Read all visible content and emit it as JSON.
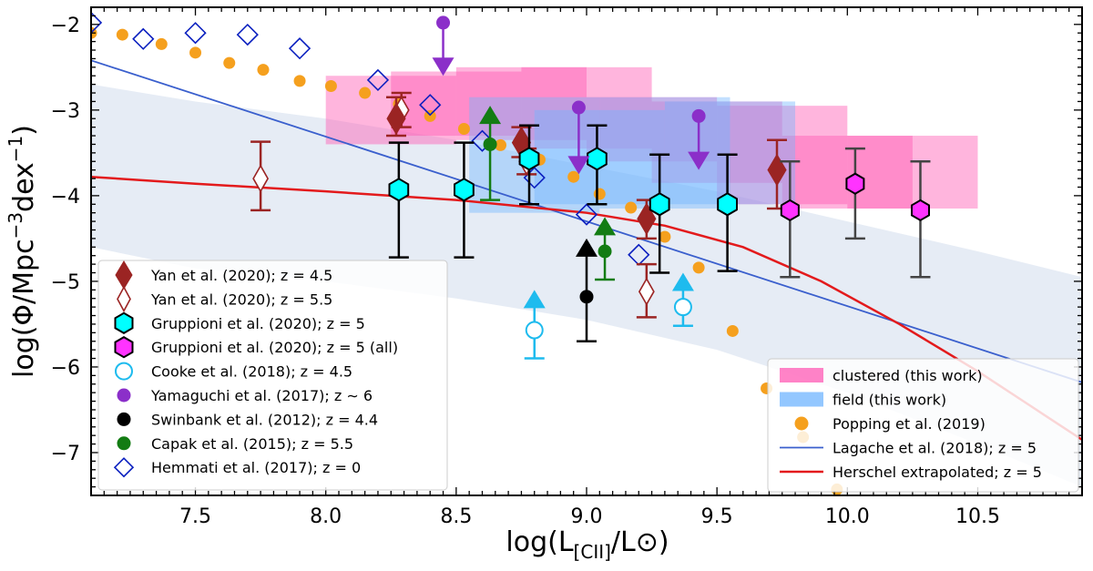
{
  "chart_data": {
    "type": "scatter",
    "xlabel": "log(L[CII]/L⊙)",
    "xlabel_main": "log(L",
    "xlabel_sub": "[CII]",
    "xlabel_tail": "/L⊙)",
    "ylabel": "log(Φ/Mpc−3dex−1)",
    "ylabel_main": "log(Φ/Mpc",
    "ylabel_sup1": "−3",
    "ylabel_mid": "dex",
    "ylabel_sup2": "−1",
    "ylabel_end": ")",
    "xlim": [
      7.1,
      10.9
    ],
    "ylim": [
      -7.5,
      -1.8
    ],
    "xticks": [
      7.5,
      8.0,
      8.5,
      9.0,
      9.5,
      10.0,
      10.5
    ],
    "xtick_labels": [
      "7.5",
      "8.0",
      "8.5",
      "9.0",
      "9.5",
      "10.0",
      "10.5"
    ],
    "yticks": [
      -2,
      -3,
      -4,
      -5,
      -6,
      -7
    ],
    "ytick_labels": [
      "−2",
      "−3",
      "−4",
      "−5",
      "−6",
      "−7"
    ],
    "colors": {
      "yan": "#9b2423",
      "gruppioni": "#00ffff",
      "gruppioni_all": "#ff33ff",
      "cooke": "#1ebbee",
      "yamaguchi": "#8b2fc9",
      "swinbank": "#000000",
      "capak": "#137c13",
      "hemmati": "#0a1fbf",
      "clustered": "#ff5ab4",
      "field": "#6fb4ff",
      "popping": "#f5a01e",
      "lagache": "#3a5fcd",
      "herschel": "#e31a1c",
      "band": "#dde6f2"
    },
    "clustered_boxes": [
      {
        "x": [
          8.0,
          8.5
        ],
        "y": [
          -3.4,
          -2.6
        ]
      },
      {
        "x": [
          8.25,
          8.75
        ],
        "y": [
          -3.3,
          -2.55
        ]
      },
      {
        "x": [
          8.5,
          9.0
        ],
        "y": [
          -3.35,
          -2.5
        ]
      },
      {
        "x": [
          8.75,
          9.25
        ],
        "y": [
          -3.45,
          -2.5
        ]
      },
      {
        "x": [
          9.0,
          9.5
        ],
        "y": [
          -3.6,
          -2.85
        ]
      },
      {
        "x": [
          9.25,
          9.75
        ],
        "y": [
          -3.85,
          -2.9
        ]
      },
      {
        "x": [
          9.5,
          10.0
        ],
        "y": [
          -4.1,
          -2.95
        ]
      },
      {
        "x": [
          9.75,
          10.25
        ],
        "y": [
          -4.15,
          -3.3
        ]
      },
      {
        "x": [
          10.0,
          10.5
        ],
        "y": [
          -4.15,
          -3.3
        ]
      }
    ],
    "field_boxes": [
      {
        "x": [
          8.55,
          9.05
        ],
        "y": [
          -4.2,
          -2.85
        ]
      },
      {
        "x": [
          8.8,
          9.3
        ],
        "y": [
          -4.1,
          -3.0
        ]
      },
      {
        "x": [
          9.05,
          9.55
        ],
        "y": [
          -4.15,
          -2.85
        ]
      },
      {
        "x": [
          9.3,
          9.8
        ],
        "y": [
          -4.1,
          -2.9
        ]
      }
    ],
    "band": {
      "x": [
        7.1,
        7.5,
        8.0,
        8.5,
        9.0,
        9.5,
        10.0,
        10.5,
        10.9
      ],
      "upper": [
        -2.7,
        -2.9,
        -3.1,
        -3.35,
        -3.65,
        -3.95,
        -4.3,
        -4.65,
        -4.95
      ],
      "lower": [
        -4.6,
        -4.85,
        -5.0,
        -5.2,
        -5.45,
        -5.8,
        -6.3,
        -6.9,
        -7.4
      ]
    },
    "lagache_line": {
      "x": [
        7.1,
        10.9
      ],
      "y": [
        -2.42,
        -6.18
      ]
    },
    "herschel_line": {
      "x": [
        7.1,
        7.5,
        8.0,
        8.5,
        9.0,
        9.3,
        9.6,
        9.9,
        10.2,
        10.5,
        10.7,
        10.9
      ],
      "y": [
        -3.78,
        -3.86,
        -3.95,
        -4.05,
        -4.2,
        -4.35,
        -4.6,
        -5.0,
        -5.5,
        -6.05,
        -6.45,
        -6.85
      ]
    },
    "popping": {
      "x": [
        7.1,
        7.22,
        7.37,
        7.5,
        7.63,
        7.76,
        7.9,
        8.02,
        8.15,
        8.28,
        8.4,
        8.53,
        8.67,
        8.82,
        8.95,
        9.05,
        9.17,
        9.3,
        9.43,
        9.56,
        9.69,
        9.83,
        9.96
      ],
      "y": [
        -2.1,
        -2.12,
        -2.23,
        -2.33,
        -2.45,
        -2.53,
        -2.66,
        -2.72,
        -2.8,
        -2.93,
        -3.07,
        -3.22,
        -3.41,
        -3.58,
        -3.78,
        -3.98,
        -4.14,
        -4.48,
        -4.84,
        -5.58,
        -6.25,
        -6.82,
        -7.43
      ]
    },
    "yan45": [
      {
        "x": 8.27,
        "y": -3.1,
        "lo": -3.3,
        "hi": -2.85
      },
      {
        "x": 8.75,
        "y": -3.38,
        "lo": -3.55,
        "hi": -3.2
      },
      {
        "x": 9.23,
        "y": -4.27,
        "lo": -4.5,
        "hi": -4.05
      },
      {
        "x": 9.73,
        "y": -3.7,
        "lo": -4.15,
        "hi": -3.35
      }
    ],
    "yan55": [
      {
        "x": 7.75,
        "y": -3.8,
        "lo": -4.17,
        "hi": -3.37
      },
      {
        "x": 8.29,
        "y": -3.0,
        "lo": -3.2,
        "hi": -2.8
      },
      {
        "x": 8.77,
        "y": -3.6,
        "lo": -3.75,
        "hi": -3.45
      },
      {
        "x": 9.23,
        "y": -5.12,
        "lo": -5.42,
        "hi": -4.8
      }
    ],
    "gruppioni": [
      {
        "x": 8.28,
        "y": -3.93,
        "lo": -4.72,
        "hi": -3.38
      },
      {
        "x": 8.53,
        "y": -3.93,
        "lo": -4.72,
        "hi": -3.38
      },
      {
        "x": 8.78,
        "y": -3.57,
        "lo": -4.1,
        "hi": -3.18
      },
      {
        "x": 9.04,
        "y": -3.57,
        "lo": -4.1,
        "hi": -3.18
      },
      {
        "x": 9.28,
        "y": -4.1,
        "lo": -4.9,
        "hi": -3.52
      },
      {
        "x": 9.54,
        "y": -4.1,
        "lo": -4.88,
        "hi": -3.52
      }
    ],
    "gruppioni_all": [
      {
        "x": 9.78,
        "y": -4.17,
        "lo": -4.95,
        "hi": -3.6
      },
      {
        "x": 10.03,
        "y": -3.86,
        "lo": -4.5,
        "hi": -3.45
      },
      {
        "x": 10.28,
        "y": -4.17,
        "lo": -4.95,
        "hi": -3.6
      }
    ],
    "cooke": [
      {
        "x": 8.8,
        "y": -5.57,
        "lo": -5.9,
        "arrow": -5.1
      },
      {
        "x": 9.37,
        "y": -5.3,
        "lo": -5.52,
        "arrow": -4.9
      }
    ],
    "yamaguchi": [
      {
        "x": 8.45,
        "y": -1.98,
        "arrow": -2.6
      },
      {
        "x": 8.97,
        "y": -2.97,
        "arrow": -3.75
      },
      {
        "x": 9.43,
        "y": -3.07,
        "arrow": -3.7
      }
    ],
    "swinbank": [
      {
        "x": 9.0,
        "y": -5.18,
        "lo": -5.7,
        "arrow": -4.5
      }
    ],
    "capak": [
      {
        "x": 8.63,
        "y": -3.4,
        "lo": -4.05,
        "arrow": -2.95
      },
      {
        "x": 9.07,
        "y": -4.65,
        "lo": -4.98,
        "arrow": -4.25
      }
    ],
    "hemmati": [
      {
        "x": 7.1,
        "y": -1.98
      },
      {
        "x": 7.3,
        "y": -2.17
      },
      {
        "x": 7.5,
        "y": -2.1
      },
      {
        "x": 7.7,
        "y": -2.12
      },
      {
        "x": 7.9,
        "y": -2.28
      },
      {
        "x": 8.2,
        "y": -2.65
      },
      {
        "x": 8.4,
        "y": -2.94
      },
      {
        "x": 8.6,
        "y": -3.36
      },
      {
        "x": 8.8,
        "y": -3.79
      },
      {
        "x": 9.0,
        "y": -4.22
      },
      {
        "x": 9.2,
        "y": -4.69
      }
    ],
    "legend_left": [
      {
        "label": "Yan et al. (2020); z = 4.5",
        "marker": "diamond-filled",
        "color": "yan"
      },
      {
        "label": "Yan et al. (2020); z = 5.5",
        "marker": "diamond-open",
        "color": "yan"
      },
      {
        "label": "Gruppioni et al. (2020); z = 5",
        "marker": "hexagon",
        "color": "gruppioni"
      },
      {
        "label": "Gruppioni et al. (2020); z = 5 (all)",
        "marker": "hexagon",
        "color": "gruppioni_all"
      },
      {
        "label": "Cooke et al. (2018); z = 4.5",
        "marker": "circle-open",
        "color": "cooke"
      },
      {
        "label": "Yamaguchi et al. (2017); z ∼ 6",
        "marker": "circle",
        "color": "yamaguchi"
      },
      {
        "label": "Swinbank et al. (2012); z = 4.4",
        "marker": "circle",
        "color": "swinbank"
      },
      {
        "label": "Capak et al. (2015); z = 5.5",
        "marker": "circle",
        "color": "capak"
      },
      {
        "label": "Hemmati et al. (2017); z = 0",
        "marker": "diamond-open",
        "color": "hemmati"
      }
    ],
    "legend_right": [
      {
        "label": "clustered (this work)",
        "marker": "patch",
        "color": "clustered"
      },
      {
        "label": "field (this work)",
        "marker": "patch",
        "color": "field"
      },
      {
        "label": "Popping et al. (2019)",
        "marker": "circle",
        "color": "popping"
      },
      {
        "label": "Lagache et al. (2018); z = 5",
        "marker": "line",
        "color": "lagache"
      },
      {
        "label": "Herschel extrapolated; z = 5",
        "marker": "line",
        "color": "herschel"
      }
    ]
  }
}
